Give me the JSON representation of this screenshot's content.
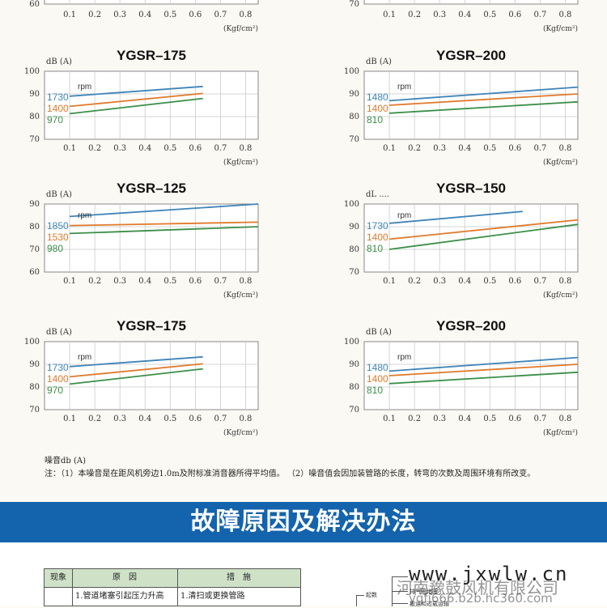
{
  "colors": {
    "blue": "#3f84b8",
    "orange": "#e07a2a",
    "green": "#3b8f48",
    "banner": "#1463ad",
    "grid": "#c9c9c9"
  },
  "partial_top": {
    "left": {
      "y_tick": "60",
      "x_ticks": [
        "0.1",
        "0.2",
        "0.3",
        "0.4",
        "0.5",
        "0.6",
        "0.7",
        "0.8"
      ],
      "unit": "(Kgf/cm²)"
    },
    "right": {
      "y_tick": "70",
      "x_ticks": [
        "0.1",
        "0.2",
        "0.3",
        "0.4",
        "0.5",
        "0.6",
        "0.7",
        "0.8"
      ],
      "unit": "(Kgf/cm²)"
    }
  },
  "chart_data": [
    {
      "type": "line",
      "title": "YGSR–175",
      "ylabel": "dB (A)",
      "xlabel": "(Kgf/cm²)",
      "xlim": [
        0,
        0.85
      ],
      "ylim": [
        70,
        100
      ],
      "x_ticks": [
        0.1,
        0.2,
        0.3,
        0.4,
        0.5,
        0.6,
        0.7,
        0.8
      ],
      "y_ticks": [
        100,
        90,
        80,
        70
      ],
      "legend_title": "rpm",
      "series": [
        {
          "name": "1730",
          "color": "blue",
          "x": [
            0.1,
            0.63
          ],
          "y": [
            89.0,
            93.3
          ]
        },
        {
          "name": "1400",
          "color": "orange",
          "x": [
            0.1,
            0.63
          ],
          "y": [
            84.5,
            90.2
          ]
        },
        {
          "name": "970",
          "color": "green",
          "x": [
            0.1,
            0.63
          ],
          "y": [
            81.3,
            88.0
          ]
        }
      ]
    },
    {
      "type": "line",
      "title": "YGSR–200",
      "ylabel": "dB (A)",
      "xlabel": "(Kgf/cm²)",
      "xlim": [
        0,
        0.85
      ],
      "ylim": [
        70,
        100
      ],
      "x_ticks": [
        0.1,
        0.2,
        0.3,
        0.4,
        0.5,
        0.6,
        0.7,
        0.8
      ],
      "y_ticks": [
        100,
        90,
        80,
        70
      ],
      "legend_title": "rpm",
      "series": [
        {
          "name": "1480",
          "color": "blue",
          "x": [
            0.1,
            0.85
          ],
          "y": [
            87.0,
            93.0
          ]
        },
        {
          "name": "1400",
          "color": "orange",
          "x": [
            0.1,
            0.85
          ],
          "y": [
            85.0,
            90.0
          ]
        },
        {
          "name": "810",
          "color": "green",
          "x": [
            0.1,
            0.85
          ],
          "y": [
            81.5,
            86.5
          ]
        }
      ]
    },
    {
      "type": "line",
      "title": "YGSR–125",
      "ylabel": "dB (A)",
      "xlabel": "(Kgf/cm²)",
      "xlim": [
        0,
        0.85
      ],
      "ylim": [
        60,
        90
      ],
      "x_ticks": [
        0.1,
        0.2,
        0.3,
        0.4,
        0.5,
        0.6,
        0.7,
        0.8
      ],
      "y_ticks": [
        90,
        80,
        70,
        60
      ],
      "legend_title": "rpm",
      "series": [
        {
          "name": "1850",
          "color": "blue",
          "x": [
            0.1,
            0.85
          ],
          "y": [
            84.5,
            90.0
          ]
        },
        {
          "name": "1530",
          "color": "orange",
          "x": [
            0.1,
            0.85
          ],
          "y": [
            80.5,
            82.0
          ]
        },
        {
          "name": "980",
          "color": "green",
          "x": [
            0.1,
            0.85
          ],
          "y": [
            77.0,
            80.0
          ]
        }
      ]
    },
    {
      "type": "line",
      "title": "YGSR–150",
      "ylabel": "dL ....",
      "xlabel": "(Kgf/cm²)",
      "xlim": [
        0,
        0.85
      ],
      "ylim": [
        70,
        100
      ],
      "x_ticks": [
        0.1,
        0.2,
        0.3,
        0.4,
        0.5,
        0.6,
        0.7,
        0.8
      ],
      "y_ticks": [
        100,
        90,
        80,
        70
      ],
      "legend_title": "rpm",
      "series": [
        {
          "name": "1730",
          "color": "blue",
          "x": [
            0.1,
            0.63
          ],
          "y": [
            91.5,
            96.7
          ]
        },
        {
          "name": "1400",
          "color": "orange",
          "x": [
            0.1,
            0.85
          ],
          "y": [
            84.5,
            93.0
          ]
        },
        {
          "name": "810",
          "color": "green",
          "x": [
            0.1,
            0.85
          ],
          "y": [
            80.0,
            91.0
          ]
        }
      ]
    },
    {
      "type": "line",
      "title": "YGSR–175",
      "ylabel": "dB (A)",
      "xlabel": "(Kgf/cm²)",
      "xlim": [
        0,
        0.85
      ],
      "ylim": [
        70,
        100
      ],
      "x_ticks": [
        0.1,
        0.2,
        0.3,
        0.4,
        0.5,
        0.6,
        0.7,
        0.8
      ],
      "y_ticks": [
        100,
        90,
        80,
        70
      ],
      "legend_title": "rpm",
      "series": [
        {
          "name": "1730",
          "color": "blue",
          "x": [
            0.1,
            0.63
          ],
          "y": [
            89.0,
            93.3
          ]
        },
        {
          "name": "1400",
          "color": "orange",
          "x": [
            0.1,
            0.63
          ],
          "y": [
            84.5,
            90.2
          ]
        },
        {
          "name": "970",
          "color": "green",
          "x": [
            0.1,
            0.63
          ],
          "y": [
            81.3,
            88.0
          ]
        }
      ]
    },
    {
      "type": "line",
      "title": "YGSR–200",
      "ylabel": "dB (A)",
      "xlabel": "(Kgf/cm²)",
      "xlim": [
        0,
        0.85
      ],
      "ylim": [
        70,
        100
      ],
      "x_ticks": [
        0.1,
        0.2,
        0.3,
        0.4,
        0.5,
        0.6,
        0.7,
        0.8
      ],
      "y_ticks": [
        100,
        90,
        80,
        70
      ],
      "legend_title": "rpm",
      "series": [
        {
          "name": "1480",
          "color": "blue",
          "x": [
            0.1,
            0.85
          ],
          "y": [
            87.0,
            93.0
          ]
        },
        {
          "name": "1400",
          "color": "orange",
          "x": [
            0.1,
            0.85
          ],
          "y": [
            85.0,
            90.0
          ]
        },
        {
          "name": "810",
          "color": "green",
          "x": [
            0.1,
            0.85
          ],
          "y": [
            81.5,
            86.5
          ]
        }
      ]
    }
  ],
  "notes": {
    "heading": "噪音db (A)",
    "line": "注：（1）本噪音是在距风机旁边1.0m及附标准消音器所得平均值。  （2）噪音值会因加装管路的长度，转弯的次数及周围环境有所改变。"
  },
  "banner": {
    "title": "故障原因及解决办法"
  },
  "table": {
    "headers": [
      "现象",
      "原　因",
      "措　施"
    ],
    "row1": [
      "",
      "1.管道堵塞引起压力升高",
      "1.清扫或更换管路"
    ]
  },
  "diagram": {
    "labels": [
      "起数",
      "排气管堵塞",
      "搬运和过载运输"
    ]
  },
  "watermark": {
    "main": "www.jxwlw.cn",
    "company": "河南豫鼓风机有限公司",
    "url": "ygfj666.b2b.hc360.com"
  }
}
